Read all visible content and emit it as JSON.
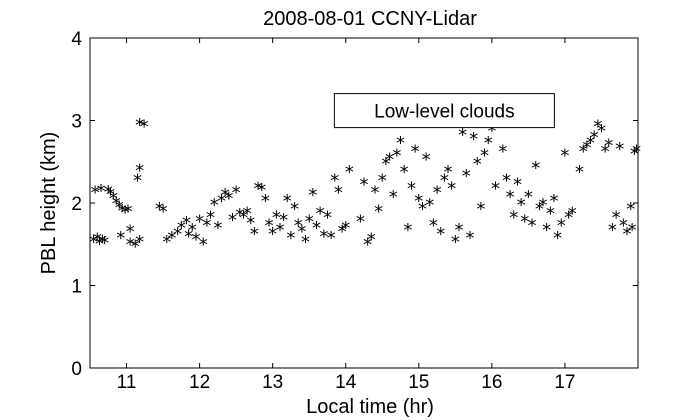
{
  "chart_data": {
    "type": "scatter",
    "title": "2008-08-01 CCNY-Lidar",
    "xlabel": "Local time (hr)",
    "ylabel": "PBL height (km)",
    "xlim": [
      10.5,
      18.0
    ],
    "ylim": [
      0,
      4
    ],
    "xticks": [
      11,
      12,
      13,
      14,
      15,
      16,
      17
    ],
    "yticks": [
      0,
      1,
      2,
      3,
      4
    ],
    "grid": false,
    "marker": "*",
    "color": "#000000",
    "annotation": {
      "text": "Low-level clouds",
      "x": 15.35,
      "y": 3.12
    },
    "series": [
      {
        "points": [
          [
            10.55,
            1.55
          ],
          [
            10.6,
            1.58
          ],
          [
            10.63,
            1.53
          ],
          [
            10.67,
            1.56
          ],
          [
            10.7,
            1.54
          ],
          [
            10.57,
            2.15
          ],
          [
            10.65,
            2.17
          ],
          [
            10.75,
            2.16
          ],
          [
            10.78,
            2.13
          ],
          [
            10.82,
            2.08
          ],
          [
            10.86,
            2.02
          ],
          [
            10.9,
            1.97
          ],
          [
            10.94,
            1.93
          ],
          [
            10.98,
            1.91
          ],
          [
            11.02,
            1.92
          ],
          [
            10.92,
            1.6
          ],
          [
            11.05,
            1.52
          ],
          [
            11.12,
            1.5
          ],
          [
            11.18,
            1.55
          ],
          [
            11.05,
            1.68
          ],
          [
            11.15,
            2.3
          ],
          [
            11.18,
            2.42
          ],
          [
            11.18,
            2.97
          ],
          [
            11.24,
            2.95
          ],
          [
            11.45,
            1.95
          ],
          [
            11.5,
            1.92
          ],
          [
            11.55,
            1.55
          ],
          [
            11.62,
            1.6
          ],
          [
            11.7,
            1.65
          ],
          [
            11.75,
            1.72
          ],
          [
            11.82,
            1.78
          ],
          [
            11.85,
            1.62
          ],
          [
            11.9,
            1.7
          ],
          [
            11.95,
            1.58
          ],
          [
            12.0,
            1.8
          ],
          [
            12.05,
            1.52
          ],
          [
            12.1,
            1.75
          ],
          [
            12.15,
            1.85
          ],
          [
            12.2,
            2.0
          ],
          [
            12.25,
            1.72
          ],
          [
            12.3,
            2.05
          ],
          [
            12.35,
            2.12
          ],
          [
            12.4,
            2.08
          ],
          [
            12.45,
            1.82
          ],
          [
            12.5,
            2.15
          ],
          [
            12.55,
            1.88
          ],
          [
            12.6,
            1.85
          ],
          [
            12.65,
            1.9
          ],
          [
            12.7,
            1.78
          ],
          [
            12.75,
            1.65
          ],
          [
            12.8,
            2.2
          ],
          [
            12.85,
            2.18
          ],
          [
            12.9,
            2.05
          ],
          [
            12.95,
            1.75
          ],
          [
            13.0,
            1.65
          ],
          [
            13.05,
            1.85
          ],
          [
            13.1,
            1.7
          ],
          [
            13.15,
            1.82
          ],
          [
            13.2,
            2.05
          ],
          [
            13.25,
            1.6
          ],
          [
            13.3,
            1.95
          ],
          [
            13.35,
            1.75
          ],
          [
            13.4,
            1.68
          ],
          [
            13.45,
            1.55
          ],
          [
            13.5,
            1.8
          ],
          [
            13.55,
            2.12
          ],
          [
            13.6,
            1.72
          ],
          [
            13.65,
            1.9
          ],
          [
            13.7,
            1.62
          ],
          [
            13.75,
            1.85
          ],
          [
            13.8,
            1.6
          ],
          [
            13.85,
            2.3
          ],
          [
            13.9,
            2.15
          ],
          [
            13.95,
            1.68
          ],
          [
            14.0,
            1.72
          ],
          [
            14.05,
            2.4
          ],
          [
            14.2,
            1.8
          ],
          [
            14.25,
            2.25
          ],
          [
            14.3,
            1.52
          ],
          [
            14.35,
            1.58
          ],
          [
            14.4,
            2.15
          ],
          [
            14.45,
            1.92
          ],
          [
            14.5,
            2.3
          ],
          [
            14.55,
            2.5
          ],
          [
            14.6,
            2.55
          ],
          [
            14.65,
            2.1
          ],
          [
            14.7,
            2.6
          ],
          [
            14.75,
            2.75
          ],
          [
            14.8,
            2.4
          ],
          [
            14.85,
            1.7
          ],
          [
            14.9,
            2.2
          ],
          [
            14.95,
            2.65
          ],
          [
            15.0,
            2.05
          ],
          [
            15.05,
            1.95
          ],
          [
            15.1,
            2.55
          ],
          [
            15.15,
            2.0
          ],
          [
            15.2,
            1.75
          ],
          [
            15.25,
            2.15
          ],
          [
            15.3,
            1.65
          ],
          [
            15.35,
            2.3
          ],
          [
            15.4,
            2.4
          ],
          [
            15.45,
            2.2
          ],
          [
            15.5,
            1.55
          ],
          [
            15.55,
            1.7
          ],
          [
            15.6,
            2.85
          ],
          [
            15.65,
            2.35
          ],
          [
            15.7,
            1.6
          ],
          [
            15.75,
            2.8
          ],
          [
            15.8,
            2.5
          ],
          [
            15.85,
            1.95
          ],
          [
            15.9,
            2.6
          ],
          [
            15.95,
            2.75
          ],
          [
            16.0,
            2.9
          ],
          [
            16.05,
            2.2
          ],
          [
            16.1,
            2.95
          ],
          [
            16.15,
            2.65
          ],
          [
            16.2,
            2.3
          ],
          [
            16.25,
            2.1
          ],
          [
            16.3,
            1.85
          ],
          [
            16.35,
            2.25
          ],
          [
            16.4,
            2.0
          ],
          [
            16.45,
            1.8
          ],
          [
            16.5,
            2.1
          ],
          [
            16.55,
            1.75
          ],
          [
            16.6,
            2.45
          ],
          [
            16.65,
            1.95
          ],
          [
            16.7,
            2.0
          ],
          [
            16.75,
            1.7
          ],
          [
            16.8,
            1.9
          ],
          [
            16.85,
            2.05
          ],
          [
            16.9,
            1.6
          ],
          [
            16.95,
            1.75
          ],
          [
            17.0,
            2.6
          ],
          [
            17.05,
            1.85
          ],
          [
            17.1,
            1.9
          ],
          [
            17.2,
            2.4
          ],
          [
            17.25,
            2.65
          ],
          [
            17.3,
            2.7
          ],
          [
            17.35,
            2.75
          ],
          [
            17.4,
            2.82
          ],
          [
            17.45,
            2.95
          ],
          [
            17.5,
            2.9
          ],
          [
            17.55,
            2.65
          ],
          [
            17.6,
            2.72
          ],
          [
            17.65,
            1.7
          ],
          [
            17.7,
            1.85
          ],
          [
            17.75,
            2.68
          ],
          [
            17.8,
            1.75
          ],
          [
            17.85,
            1.65
          ],
          [
            17.9,
            1.95
          ],
          [
            17.92,
            1.7
          ],
          [
            17.95,
            2.62
          ],
          [
            17.98,
            2.65
          ]
        ]
      }
    ]
  }
}
